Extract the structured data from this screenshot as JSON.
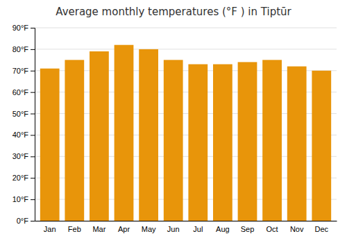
{
  "chart_data": {
    "type": "bar",
    "title": "Average monthly temperatures (°F ) in Tiptūr",
    "categories": [
      "Jan",
      "Feb",
      "Mar",
      "Apr",
      "May",
      "Jun",
      "Jul",
      "Aug",
      "Sep",
      "Oct",
      "Nov",
      "Dec"
    ],
    "values": [
      71,
      75,
      79,
      82,
      80,
      75,
      73,
      73,
      74,
      75,
      72,
      70
    ],
    "color": "#E8950A",
    "ylim": [
      0,
      90
    ],
    "yticks": [
      {
        "value": 0,
        "label": "0°F"
      },
      {
        "value": 10,
        "label": "10°F"
      },
      {
        "value": 20,
        "label": "20°F"
      },
      {
        "value": 30,
        "label": "30°F"
      },
      {
        "value": 40,
        "label": "40°F"
      },
      {
        "value": 50,
        "label": "50°F"
      },
      {
        "value": 60,
        "label": "60°F"
      },
      {
        "value": 70,
        "label": "70°F"
      },
      {
        "value": 80,
        "label": "80°F"
      },
      {
        "value": 90,
        "label": "90°F"
      }
    ],
    "grid": true
  }
}
